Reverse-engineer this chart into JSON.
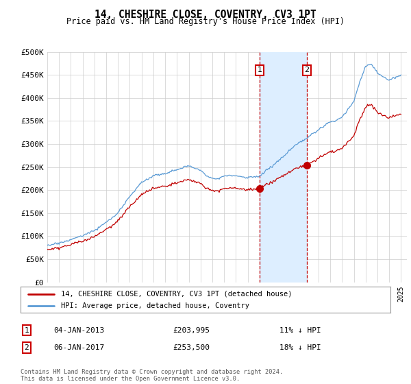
{
  "title": "14, CHESHIRE CLOSE, COVENTRY, CV3 1PT",
  "subtitle": "Price paid vs. HM Land Registry's House Price Index (HPI)",
  "ylim": [
    0,
    500000
  ],
  "yticks": [
    0,
    50000,
    100000,
    150000,
    200000,
    250000,
    300000,
    350000,
    400000,
    450000,
    500000
  ],
  "ytick_labels": [
    "£0",
    "£50K",
    "£100K",
    "£150K",
    "£200K",
    "£250K",
    "£300K",
    "£350K",
    "£400K",
    "£450K",
    "£500K"
  ],
  "hpi_color": "#5b9bd5",
  "price_color": "#c00000",
  "sale1_date": 2013.01,
  "sale1_price": 203995,
  "sale2_date": 2017.01,
  "sale2_price": 253500,
  "legend_label1": "14, CHESHIRE CLOSE, COVENTRY, CV3 1PT (detached house)",
  "legend_label2": "HPI: Average price, detached house, Coventry",
  "annotation1_label": "04-JAN-2013",
  "annotation1_price": "£203,995",
  "annotation1_hpi": "11% ↓ HPI",
  "annotation2_label": "06-JAN-2017",
  "annotation2_price": "£253,500",
  "annotation2_hpi": "18% ↓ HPI",
  "footer": "Contains HM Land Registry data © Crown copyright and database right 2024.\nThis data is licensed under the Open Government Licence v3.0.",
  "bg_color": "#ffffff",
  "grid_color": "#cccccc",
  "highlight_color": "#ddeeff",
  "box_color": "#cc0000"
}
